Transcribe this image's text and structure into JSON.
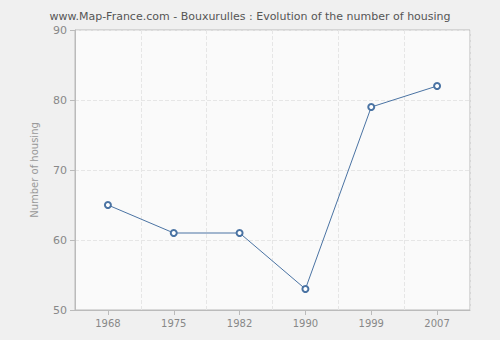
{
  "chart_data": {
    "type": "line",
    "title": "www.Map-France.com - Bouxurulles : Evolution of the number of housing",
    "y_label": "Number of housing",
    "categories": [
      "1968",
      "1975",
      "1982",
      "1990",
      "1999",
      "2007"
    ],
    "values": [
      65,
      61,
      61,
      53,
      79,
      82
    ],
    "color": "#4a73a3",
    "marker": "circle",
    "line_style": "solid",
    "ylim": [
      50,
      90
    ],
    "yticks": [
      50,
      60,
      70,
      80,
      90
    ],
    "grid": true
  }
}
